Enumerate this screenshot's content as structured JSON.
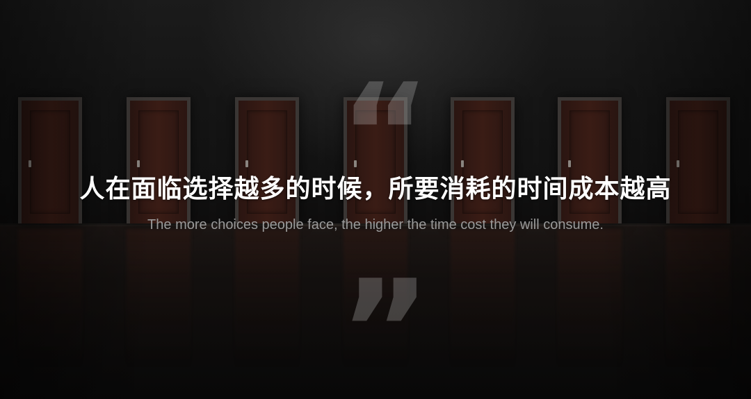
{
  "quote": {
    "open_mark": "“",
    "close_mark": "”",
    "main_text": "人在面临选择越多的时候，所要消耗的时间成本越高",
    "translation": "The more choices people face, the higher the time cost they will consume."
  },
  "scene": {
    "door_count": 7,
    "colors": {
      "background": "#121212",
      "door_wood": "#3a1c15",
      "door_frame": "#3a3634",
      "title_text": "#ffffff",
      "subtitle_text": "#9a9a9a"
    }
  }
}
